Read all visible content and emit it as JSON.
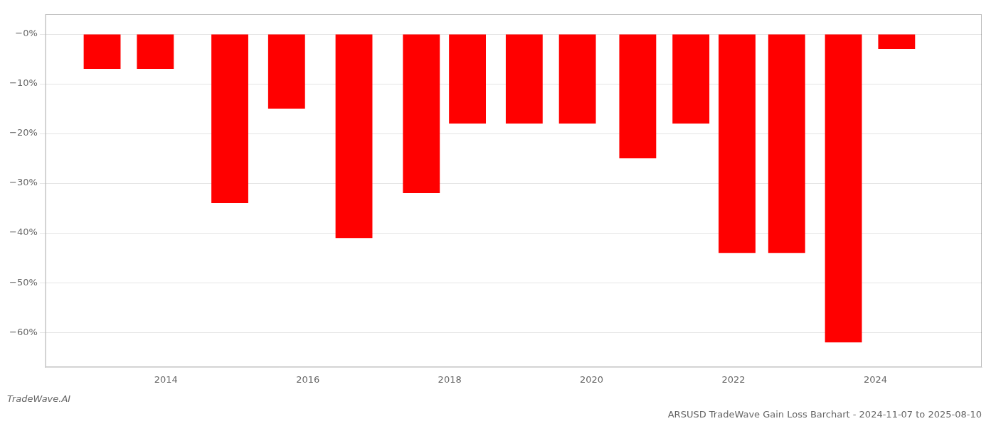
{
  "chart_data": {
    "type": "bar",
    "title": "ARSUSD TradeWave Gain Loss Barchart - 2024-11-07 to 2025-08-10",
    "annotations": [
      "TradeWave.AI"
    ],
    "x": [
      2013.1,
      2013.85,
      2014.9,
      2015.7,
      2016.65,
      2017.6,
      2018.25,
      2019.05,
      2019.8,
      2020.65,
      2021.4,
      2022.05,
      2022.75,
      2023.55,
      2024.3
    ],
    "values": [
      -7.0,
      -7.0,
      -34.0,
      -15.0,
      -41.0,
      -32.0,
      -18.0,
      -18.0,
      -18.0,
      -25.0,
      -18.0,
      -44.0,
      -44.0,
      -62.0,
      -3.0
    ],
    "color": "#ff0000",
    "xlim": [
      2012.3,
      2025.5
    ],
    "xticks": [
      2014,
      2016,
      2018,
      2020,
      2022,
      2024
    ],
    "ylim": [
      -67,
      4
    ],
    "yticks": [
      {
        "value": 0,
        "label": "−0%"
      },
      {
        "value": -10,
        "label": "−10%"
      },
      {
        "value": -20,
        "label": "−20%"
      },
      {
        "value": -30,
        "label": "−30%"
      },
      {
        "value": -40,
        "label": "−40%"
      },
      {
        "value": -50,
        "label": "−50%"
      },
      {
        "value": -60,
        "label": "−60%"
      }
    ],
    "grid": "y"
  }
}
